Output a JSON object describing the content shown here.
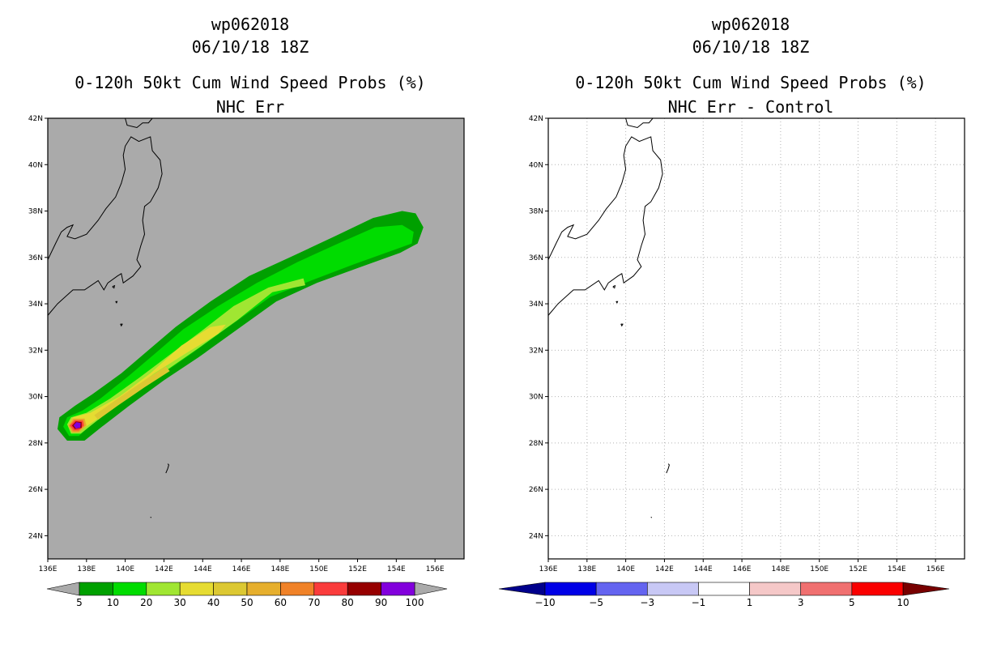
{
  "chart_data": [
    {
      "type": "heatmap",
      "storm_id": "wp062018",
      "datetime": "06/10/18 18Z",
      "title": "0-120h 50kt Cum Wind Speed Probs (%)",
      "subtitle": "NHC Err",
      "xlim": [
        136,
        157.5
      ],
      "ylim": [
        23,
        42
      ],
      "x_ticks": [
        136,
        138,
        140,
        142,
        144,
        146,
        148,
        150,
        152,
        154,
        156
      ],
      "x_tick_labels": [
        "136E",
        "138E",
        "140E",
        "142E",
        "144E",
        "146E",
        "148E",
        "150E",
        "152E",
        "154E",
        "156E"
      ],
      "y_ticks": [
        24,
        26,
        28,
        30,
        32,
        34,
        36,
        38,
        40,
        42
      ],
      "y_tick_labels": [
        "24N",
        "26N",
        "28N",
        "30N",
        "32N",
        "34N",
        "36N",
        "38N",
        "40N",
        "42N"
      ],
      "background": "#aaaaaa",
      "grid": false,
      "track_polygons": [
        {
          "level": 5,
          "color": "#00a000",
          "points": [
            [
              137.0,
              28.1
            ],
            [
              136.5,
              28.6
            ],
            [
              136.6,
              29.1
            ],
            [
              137.4,
              29.6
            ],
            [
              138.3,
              30.1
            ],
            [
              139.8,
              31.0
            ],
            [
              141.2,
              32.0
            ],
            [
              142.6,
              33.0
            ],
            [
              144.4,
              34.1
            ],
            [
              146.4,
              35.2
            ],
            [
              148.5,
              36.0
            ],
            [
              150.8,
              36.9
            ],
            [
              152.8,
              37.7
            ],
            [
              154.3,
              38.0
            ],
            [
              155.0,
              37.9
            ],
            [
              155.4,
              37.3
            ],
            [
              155.1,
              36.6
            ],
            [
              154.2,
              36.2
            ],
            [
              152.2,
              35.6
            ],
            [
              149.9,
              34.9
            ],
            [
              147.8,
              34.1
            ],
            [
              145.8,
              32.9
            ],
            [
              143.8,
              31.7
            ],
            [
              142.0,
              30.7
            ],
            [
              140.2,
              29.6
            ],
            [
              138.8,
              28.7
            ],
            [
              137.9,
              28.1
            ]
          ]
        },
        {
          "level": 10,
          "color": "#00dc00",
          "points": [
            [
              137.1,
              28.3
            ],
            [
              136.8,
              28.7
            ],
            [
              137.0,
              29.1
            ],
            [
              137.8,
              29.4
            ],
            [
              138.7,
              29.9
            ],
            [
              140.2,
              30.9
            ],
            [
              141.6,
              31.9
            ],
            [
              143.0,
              32.9
            ],
            [
              144.8,
              33.9
            ],
            [
              146.8,
              34.9
            ],
            [
              148.9,
              35.8
            ],
            [
              151.0,
              36.6
            ],
            [
              152.9,
              37.3
            ],
            [
              154.3,
              37.4
            ],
            [
              154.9,
              37.1
            ],
            [
              154.8,
              36.6
            ],
            [
              153.8,
              36.3
            ],
            [
              151.8,
              35.7
            ],
            [
              149.6,
              35.0
            ],
            [
              147.5,
              34.3
            ],
            [
              145.5,
              33.1
            ],
            [
              143.5,
              31.9
            ],
            [
              141.6,
              30.8
            ],
            [
              139.8,
              29.8
            ],
            [
              138.4,
              28.9
            ],
            [
              137.6,
              28.3
            ]
          ]
        },
        {
          "level": 20,
          "color": "#a0e632",
          "points": [
            [
              137.2,
              28.4
            ],
            [
              137.0,
              28.8
            ],
            [
              137.2,
              29.1
            ],
            [
              138.0,
              29.3
            ],
            [
              139.2,
              29.9
            ],
            [
              140.7,
              30.8
            ],
            [
              142.3,
              31.8
            ],
            [
              143.9,
              32.8
            ],
            [
              145.6,
              33.9
            ],
            [
              147.4,
              34.7
            ],
            [
              149.2,
              35.1
            ],
            [
              149.3,
              34.8
            ],
            [
              147.6,
              34.5
            ],
            [
              145.8,
              33.3
            ],
            [
              143.8,
              32.1
            ],
            [
              141.9,
              31.0
            ],
            [
              140.1,
              30.0
            ],
            [
              138.6,
              29.0
            ],
            [
              137.7,
              28.4
            ]
          ]
        },
        {
          "level": 30,
          "color": "#e6dc32",
          "points": [
            [
              137.3,
              28.5
            ],
            [
              137.1,
              28.8
            ],
            [
              137.3,
              29.1
            ],
            [
              138.2,
              29.3
            ],
            [
              139.7,
              30.0
            ],
            [
              141.3,
              31.0
            ],
            [
              142.9,
              32.2
            ],
            [
              144.4,
              33.0
            ],
            [
              145.2,
              33.1
            ],
            [
              144.8,
              32.7
            ],
            [
              143.2,
              31.9
            ],
            [
              141.5,
              31.0
            ],
            [
              139.9,
              30.0
            ],
            [
              138.5,
              29.0
            ],
            [
              137.6,
              28.5
            ]
          ]
        },
        {
          "level": 40,
          "color": "#dcc832",
          "points": [
            [
              138.4,
              29.2
            ],
            [
              139.6,
              29.9
            ],
            [
              141.0,
              30.7
            ],
            [
              142.1,
              31.3
            ],
            [
              142.3,
              31.1
            ],
            [
              141.0,
              30.4
            ],
            [
              139.6,
              29.6
            ],
            [
              138.6,
              29.0
            ]
          ]
        },
        {
          "level": 50,
          "color": "#e6af2d",
          "points": [
            [
              137.25,
              28.45
            ],
            [
              137.05,
              28.75
            ],
            [
              137.3,
              29.05
            ],
            [
              137.9,
              29.05
            ],
            [
              138.0,
              28.75
            ],
            [
              137.6,
              28.45
            ]
          ]
        },
        {
          "level": 60,
          "color": "#f08228",
          "points": [
            [
              137.3,
              28.5
            ],
            [
              137.1,
              28.75
            ],
            [
              137.35,
              29.0
            ],
            [
              137.85,
              29.0
            ],
            [
              137.9,
              28.75
            ],
            [
              137.6,
              28.5
            ]
          ]
        },
        {
          "level": 70,
          "color": "#fa3c3c",
          "points": [
            [
              137.35,
              28.55
            ],
            [
              137.15,
              28.75
            ],
            [
              137.4,
              28.97
            ],
            [
              137.8,
              28.95
            ],
            [
              137.85,
              28.75
            ],
            [
              137.6,
              28.55
            ]
          ]
        },
        {
          "level": 80,
          "color": "#960000",
          "points": [
            [
              137.4,
              28.6
            ],
            [
              137.25,
              28.75
            ],
            [
              137.45,
              28.93
            ],
            [
              137.75,
              28.9
            ],
            [
              137.75,
              28.65
            ]
          ]
        },
        {
          "level": 100,
          "color": "#8200dc",
          "points": [
            [
              137.45,
              28.62
            ],
            [
              137.33,
              28.76
            ],
            [
              137.48,
              28.9
            ],
            [
              137.7,
              28.86
            ],
            [
              137.68,
              28.66
            ]
          ]
        }
      ],
      "colorbar": {
        "labels": [
          "5",
          "10",
          "20",
          "30",
          "40",
          "50",
          "60",
          "70",
          "80",
          "90",
          "100"
        ],
        "colors": [
          "#00a000",
          "#00dc00",
          "#a0e632",
          "#e6dc32",
          "#dcc832",
          "#e6af2d",
          "#f08228",
          "#fa3c3c",
          "#960000",
          "#8200dc"
        ],
        "under_color": "#aaaaaa",
        "over_color": "#aaaaaa"
      }
    },
    {
      "type": "heatmap",
      "storm_id": "wp062018",
      "datetime": "06/10/18 18Z",
      "title": "0-120h 50kt Cum Wind Speed Probs (%)",
      "subtitle": "NHC Err - Control",
      "xlim": [
        136,
        157.5
      ],
      "ylim": [
        23,
        42
      ],
      "x_ticks": [
        136,
        138,
        140,
        142,
        144,
        146,
        148,
        150,
        152,
        154,
        156
      ],
      "x_tick_labels": [
        "136E",
        "138E",
        "140E",
        "142E",
        "144E",
        "146E",
        "148E",
        "150E",
        "152E",
        "154E",
        "156E"
      ],
      "y_ticks": [
        24,
        26,
        28,
        30,
        32,
        34,
        36,
        38,
        40,
        42
      ],
      "y_tick_labels": [
        "24N",
        "26N",
        "28N",
        "30N",
        "32N",
        "34N",
        "36N",
        "38N",
        "40N",
        "42N"
      ],
      "background": "#ffffff",
      "grid": true,
      "track_polygons": [],
      "colorbar": {
        "labels": [
          "−10",
          "−5",
          "−3",
          "−1",
          "1",
          "3",
          "5",
          "10"
        ],
        "colors": [
          "#0000e6",
          "#6464f0",
          "#c8c8f5",
          "#ffffff",
          "#f5c8c8",
          "#f07070",
          "#fa0000"
        ],
        "under_color": "#00008c",
        "over_color": "#780000"
      }
    }
  ],
  "coastlines": [
    {
      "name": "honshu",
      "points": [
        [
          136.0,
          35.9
        ],
        [
          136.4,
          36.6
        ],
        [
          136.7,
          37.1
        ],
        [
          137.0,
          37.3
        ],
        [
          137.3,
          37.4
        ],
        [
          137.0,
          36.9
        ],
        [
          137.4,
          36.8
        ],
        [
          138.0,
          37.0
        ],
        [
          138.6,
          37.6
        ],
        [
          139.0,
          38.1
        ],
        [
          139.5,
          38.6
        ],
        [
          139.8,
          39.2
        ],
        [
          140.0,
          39.8
        ],
        [
          139.9,
          40.4
        ],
        [
          140.0,
          40.8
        ],
        [
          140.3,
          41.2
        ],
        [
          140.7,
          41.0
        ],
        [
          141.3,
          41.2
        ],
        [
          141.4,
          40.6
        ],
        [
          141.8,
          40.2
        ],
        [
          141.9,
          39.6
        ],
        [
          141.7,
          39.0
        ],
        [
          141.3,
          38.4
        ],
        [
          141.0,
          38.2
        ],
        [
          140.9,
          37.6
        ],
        [
          141.0,
          37.0
        ],
        [
          140.8,
          36.5
        ],
        [
          140.6,
          35.9
        ],
        [
          140.8,
          35.6
        ],
        [
          140.4,
          35.2
        ],
        [
          139.9,
          34.9
        ],
        [
          139.8,
          35.3
        ],
        [
          139.6,
          35.2
        ],
        [
          139.1,
          34.9
        ],
        [
          138.9,
          34.6
        ],
        [
          138.6,
          35.0
        ],
        [
          137.9,
          34.6
        ],
        [
          137.3,
          34.6
        ],
        [
          136.9,
          34.3
        ],
        [
          136.5,
          34.0
        ],
        [
          136.1,
          33.6
        ],
        [
          136.0,
          33.5
        ]
      ]
    },
    {
      "name": "hokkaido-tip",
      "points": [
        [
          140.0,
          42.0
        ],
        [
          140.1,
          41.7
        ],
        [
          140.6,
          41.6
        ],
        [
          140.9,
          41.8
        ],
        [
          141.2,
          41.8
        ],
        [
          141.4,
          42.0
        ]
      ]
    },
    {
      "name": "oshima",
      "points": [
        [
          139.35,
          34.75
        ],
        [
          139.45,
          34.78
        ],
        [
          139.42,
          34.68
        ],
        [
          139.35,
          34.72
        ],
        [
          139.35,
          34.75
        ]
      ]
    },
    {
      "name": "miyake",
      "points": [
        [
          139.5,
          34.1
        ],
        [
          139.58,
          34.1
        ],
        [
          139.55,
          34.04
        ],
        [
          139.5,
          34.1
        ]
      ]
    },
    {
      "name": "hachijo",
      "points": [
        [
          139.75,
          33.13
        ],
        [
          139.85,
          33.12
        ],
        [
          139.8,
          33.05
        ],
        [
          139.75,
          33.13
        ]
      ]
    },
    {
      "name": "ogasawara",
      "points": [
        [
          142.2,
          27.1
        ],
        [
          142.25,
          27.05
        ],
        [
          142.2,
          26.9
        ],
        [
          142.1,
          26.7
        ]
      ]
    },
    {
      "name": "iwo",
      "points": [
        [
          141.3,
          24.8
        ],
        [
          141.35,
          24.78
        ]
      ]
    }
  ]
}
